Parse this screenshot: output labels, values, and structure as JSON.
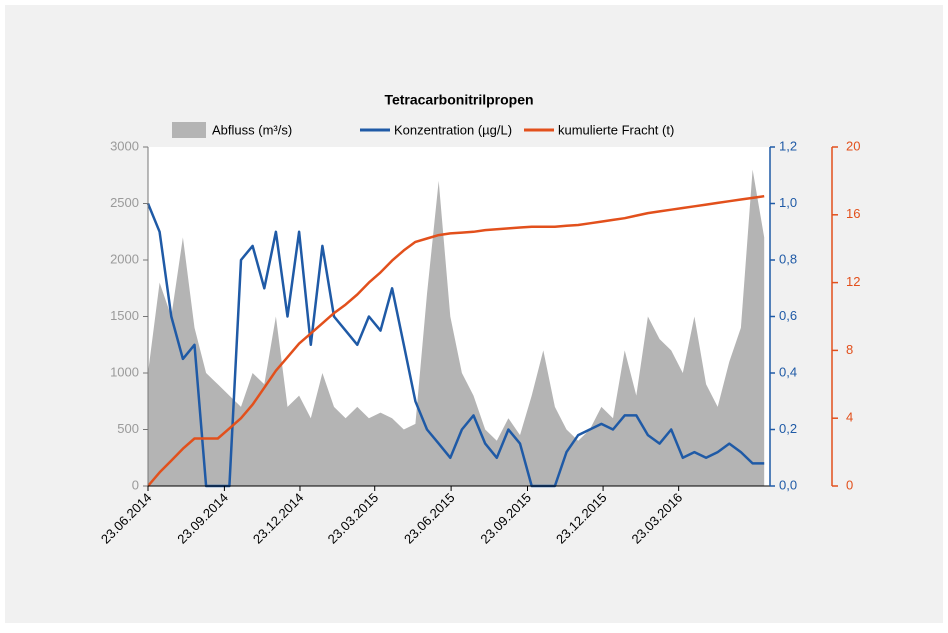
{
  "chart_data": {
    "type": "multi-axis-line",
    "title": "Tetracarbonitrilpropen",
    "x": [
      "2014-06-23",
      "2014-07-07",
      "2014-07-21",
      "2014-08-04",
      "2014-08-18",
      "2014-09-01",
      "2014-09-15",
      "2014-09-29",
      "2014-10-13",
      "2014-10-27",
      "2014-11-10",
      "2014-11-24",
      "2014-12-08",
      "2014-12-22",
      "2015-01-05",
      "2015-01-19",
      "2015-02-02",
      "2015-02-16",
      "2015-03-02",
      "2015-03-16",
      "2015-03-30",
      "2015-04-13",
      "2015-04-27",
      "2015-05-11",
      "2015-05-25",
      "2015-06-08",
      "2015-06-22",
      "2015-07-06",
      "2015-07-20",
      "2015-08-03",
      "2015-08-17",
      "2015-08-31",
      "2015-09-14",
      "2015-09-28",
      "2015-10-12",
      "2015-10-26",
      "2015-11-09",
      "2015-11-23",
      "2015-12-07",
      "2015-12-21",
      "2016-01-04",
      "2016-01-18",
      "2016-02-01",
      "2016-02-15",
      "2016-02-29",
      "2016-03-14",
      "2016-03-28",
      "2016-04-11",
      "2016-04-25",
      "2016-05-09",
      "2016-05-23",
      "2016-06-06",
      "2016-06-20",
      "2016-07-04"
    ],
    "xlim": [
      "2014-06-23",
      "2016-07-11"
    ],
    "xticks": [
      {
        "value": "2014-06-23",
        "label": "23.06.2014"
      },
      {
        "value": "2014-09-23",
        "label": "23.09.2014"
      },
      {
        "value": "2014-12-23",
        "label": "23.12.2014"
      },
      {
        "value": "2015-03-23",
        "label": "23.03.2015"
      },
      {
        "value": "2015-06-23",
        "label": "23.06.2015"
      },
      {
        "value": "2015-09-23",
        "label": "23.09.2015"
      },
      {
        "value": "2015-12-23",
        "label": "23.12.2015"
      },
      {
        "value": "2016-03-23",
        "label": "23.03.2016"
      }
    ],
    "ylim": [
      0,
      3000
    ],
    "yticks": [
      0,
      500,
      1000,
      1500,
      2000,
      2500,
      3000
    ],
    "y2lim": [
      0,
      1.2
    ],
    "y2ticks": [
      {
        "value": 0,
        "label": "0,0"
      },
      {
        "value": 0.2,
        "label": "0,2"
      },
      {
        "value": 0.4,
        "label": "0,4"
      },
      {
        "value": 0.6,
        "label": "0,6"
      },
      {
        "value": 0.8,
        "label": "0,8"
      },
      {
        "value": 1.0,
        "label": "1,0"
      },
      {
        "value": 1.2,
        "label": "1,2"
      }
    ],
    "y3lim": [
      0,
      20
    ],
    "y3ticks": [
      0,
      4,
      8,
      12,
      16,
      20
    ],
    "series": [
      {
        "name": "Abfluss (m³/s)",
        "type": "area",
        "axis": "y",
        "color": "#b4b4b4",
        "values": [
          1000,
          1800,
          1500,
          2200,
          1400,
          1000,
          900,
          800,
          700,
          1000,
          900,
          1500,
          700,
          800,
          600,
          1000,
          700,
          600,
          700,
          600,
          650,
          600,
          500,
          550,
          1700,
          2700,
          1500,
          1000,
          800,
          500,
          400,
          600,
          450,
          800,
          1200,
          700,
          500,
          400,
          500,
          700,
          600,
          1200,
          800,
          1500,
          1300,
          1200,
          1000,
          1500,
          900,
          700,
          1100,
          1400,
          2800,
          2200
        ]
      },
      {
        "name": "Konzentration (µg/L)",
        "type": "line",
        "axis": "y2",
        "color": "#1f5aa6",
        "values": [
          1.0,
          0.9,
          0.6,
          0.45,
          0.5,
          0.0,
          0.0,
          0.0,
          0.8,
          0.85,
          0.7,
          0.9,
          0.6,
          0.9,
          0.5,
          0.85,
          0.6,
          0.55,
          0.5,
          0.6,
          0.55,
          0.7,
          0.5,
          0.3,
          0.2,
          0.15,
          0.1,
          0.2,
          0.25,
          0.15,
          0.1,
          0.2,
          0.15,
          0.0,
          0.0,
          0.0,
          0.12,
          0.18,
          0.2,
          0.22,
          0.2,
          0.25,
          0.25,
          0.18,
          0.15,
          0.2,
          0.1,
          0.12,
          0.1,
          0.12,
          0.15,
          0.12,
          0.08,
          0.08
        ]
      },
      {
        "name": "kumulierte Fracht (t)",
        "type": "line",
        "axis": "y3",
        "color": "#e2501c",
        "values": [
          0,
          0.8,
          1.5,
          2.2,
          2.8,
          2.8,
          2.8,
          3.4,
          4.0,
          4.8,
          5.8,
          6.8,
          7.6,
          8.4,
          9.0,
          9.6,
          10.2,
          10.7,
          11.3,
          12.0,
          12.6,
          13.3,
          13.9,
          14.4,
          14.6,
          14.8,
          14.9,
          14.95,
          15.0,
          15.1,
          15.15,
          15.2,
          15.25,
          15.3,
          15.3,
          15.3,
          15.35,
          15.4,
          15.5,
          15.6,
          15.7,
          15.8,
          15.95,
          16.1,
          16.2,
          16.3,
          16.4,
          16.5,
          16.6,
          16.7,
          16.8,
          16.9,
          17.0,
          17.1
        ]
      }
    ]
  }
}
